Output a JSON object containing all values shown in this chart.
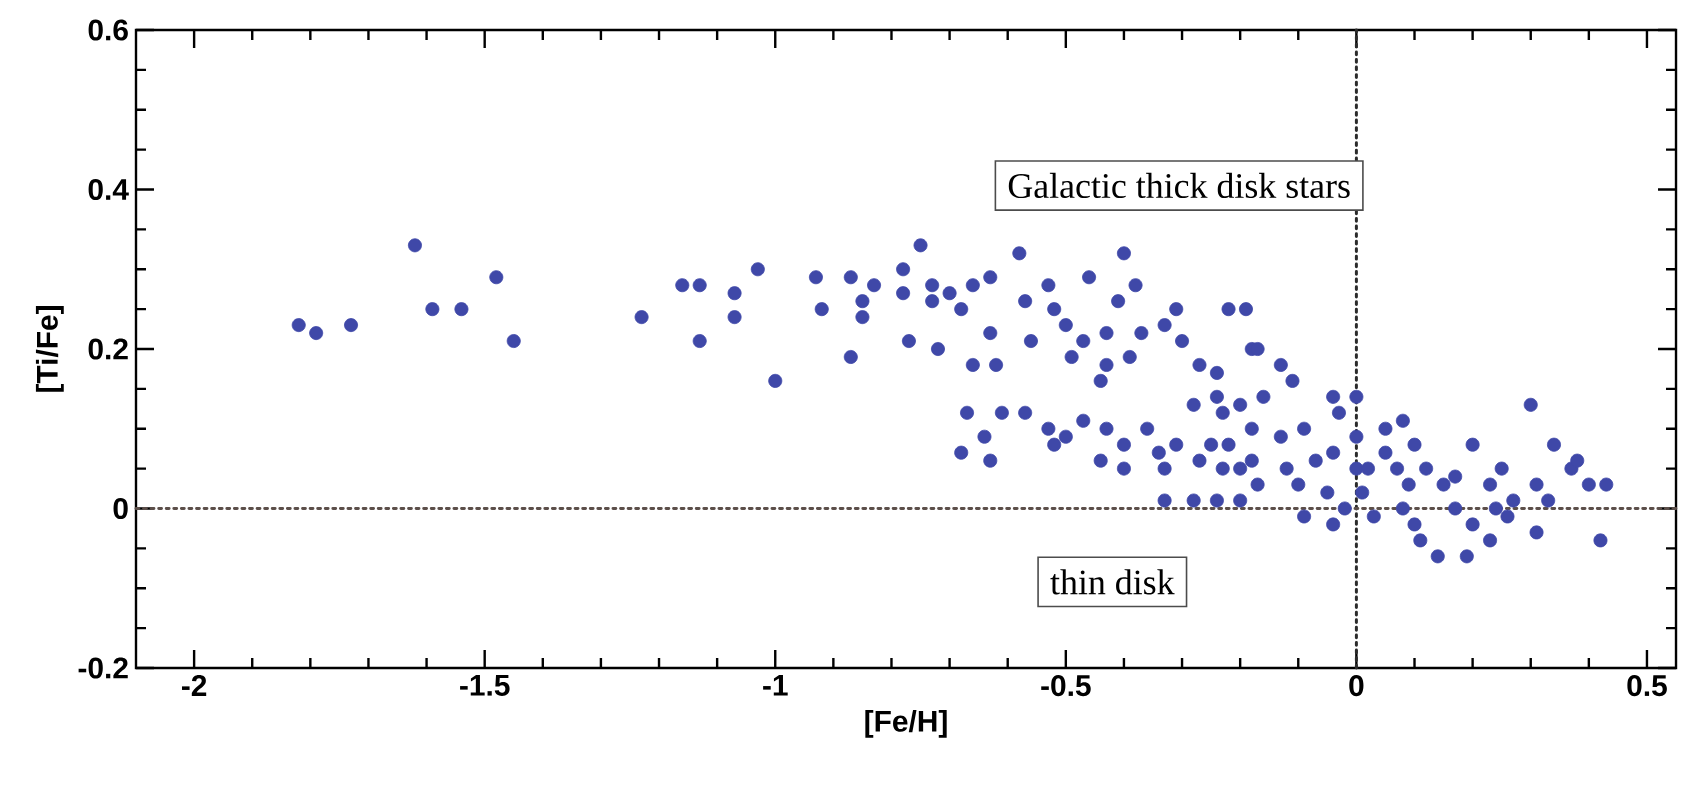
{
  "chart_data": {
    "type": "scatter",
    "xlabel": "[Fe/H]",
    "ylabel": "[Ti/Fe]",
    "xlim": [
      -2.1,
      0.55
    ],
    "ylim": [
      -0.2,
      0.6
    ],
    "xticks": [
      -2,
      -1.5,
      -1,
      -0.5,
      0,
      0.5
    ],
    "yticks": [
      -0.2,
      0,
      0.2,
      0.4,
      0.6
    ],
    "marker": "circle",
    "grid": false,
    "ref_lines": [
      {
        "axis": "x",
        "value": 0,
        "line_style": "dotted",
        "color": "#2b2b2b"
      },
      {
        "axis": "y",
        "value": 0,
        "line_style": "dotted",
        "color": "#5c4f4a"
      }
    ],
    "annotations": [
      "Galactic thick disk stars",
      "thin disk"
    ],
    "series": [
      {
        "color": "#3f48a8",
        "x": [
          -1.82,
          -1.79,
          -1.73,
          -1.62,
          -1.59,
          -1.54,
          -1.48,
          -1.45,
          -1.23,
          -1.16,
          -1.13,
          -1.13,
          -1.07,
          -1.07,
          -1.03,
          -1.0,
          -0.93,
          -0.92,
          -0.87,
          -0.87,
          -0.85,
          -0.85,
          -0.83,
          -0.78,
          -0.78,
          -0.75,
          -0.77,
          -0.73,
          -0.73,
          -0.72,
          -0.7,
          -0.68,
          -0.66,
          -0.66,
          -0.63,
          -0.63,
          -0.62,
          -0.58,
          -0.57,
          -0.56,
          -0.53,
          -0.52,
          -0.5,
          -0.49,
          -0.46,
          -0.47,
          -0.44,
          -0.43,
          -0.43,
          -0.4,
          -0.41,
          -0.38,
          -0.39,
          -0.37,
          -0.33,
          -0.31,
          -0.3,
          -0.27,
          -0.22,
          -0.19,
          -0.18,
          -0.24,
          -0.67,
          -0.68,
          -0.64,
          -0.63,
          -0.61,
          -0.57,
          -0.53,
          -0.52,
          -0.5,
          -0.47,
          -0.44,
          -0.43,
          -0.4,
          -0.4,
          -0.36,
          -0.34,
          -0.33,
          -0.31,
          -0.28,
          -0.27,
          -0.24,
          -0.23,
          -0.22,
          -0.2,
          -0.18,
          -0.17,
          -0.33,
          -0.28,
          -0.24,
          -0.2,
          -0.17,
          -0.13,
          -0.11,
          -0.16,
          -0.2,
          -0.09,
          -0.04,
          0.0,
          -0.03,
          -0.13,
          -0.25,
          -0.23,
          -0.18,
          -0.12,
          -0.07,
          -0.04,
          0.0,
          0.0,
          -0.1,
          -0.05,
          -0.02,
          -0.09,
          -0.04,
          0.01,
          0.03,
          0.05,
          0.08,
          0.1,
          0.07,
          0.09,
          0.12,
          0.08,
          0.1,
          0.11,
          0.14,
          0.15,
          0.17,
          0.19,
          0.2,
          0.2,
          0.23,
          0.23,
          0.25,
          0.27,
          0.3,
          0.31,
          0.31,
          0.33,
          0.34,
          0.37,
          0.38,
          0.4,
          0.43,
          0.42,
          0.05,
          0.02,
          0.17,
          0.26,
          0.24
        ],
        "values": [
          0.23,
          0.22,
          0.23,
          0.33,
          0.25,
          0.25,
          0.29,
          0.21,
          0.24,
          0.28,
          0.28,
          0.21,
          0.27,
          0.24,
          0.3,
          0.16,
          0.29,
          0.25,
          0.19,
          0.29,
          0.26,
          0.24,
          0.28,
          0.3,
          0.27,
          0.33,
          0.21,
          0.28,
          0.26,
          0.2,
          0.27,
          0.25,
          0.28,
          0.18,
          0.29,
          0.22,
          0.18,
          0.32,
          0.26,
          0.21,
          0.28,
          0.25,
          0.23,
          0.19,
          0.29,
          0.21,
          0.16,
          0.18,
          0.22,
          0.32,
          0.26,
          0.28,
          0.19,
          0.22,
          0.23,
          0.25,
          0.21,
          0.18,
          0.25,
          0.25,
          0.2,
          0.17,
          0.12,
          0.07,
          0.09,
          0.06,
          0.12,
          0.12,
          0.1,
          0.08,
          0.09,
          0.11,
          0.06,
          0.1,
          0.08,
          0.05,
          0.1,
          0.07,
          0.05,
          0.08,
          0.13,
          0.06,
          0.14,
          0.12,
          0.08,
          0.05,
          0.1,
          0.03,
          0.01,
          0.01,
          0.01,
          0.01,
          0.2,
          0.18,
          0.16,
          0.14,
          0.13,
          0.1,
          0.14,
          0.14,
          0.12,
          0.09,
          0.08,
          0.05,
          0.06,
          0.05,
          0.06,
          0.07,
          0.09,
          0.05,
          0.03,
          0.02,
          0.0,
          -0.01,
          -0.02,
          0.02,
          -0.01,
          0.1,
          0.11,
          0.08,
          0.05,
          0.03,
          0.05,
          0.0,
          -0.02,
          -0.04,
          -0.06,
          0.03,
          0.0,
          -0.06,
          0.08,
          -0.02,
          0.03,
          -0.04,
          0.05,
          0.01,
          0.13,
          -0.03,
          0.03,
          0.01,
          0.08,
          0.05,
          0.06,
          0.03,
          0.03,
          -0.04,
          0.07,
          0.05,
          0.04,
          -0.01,
          0.0
        ]
      }
    ]
  }
}
